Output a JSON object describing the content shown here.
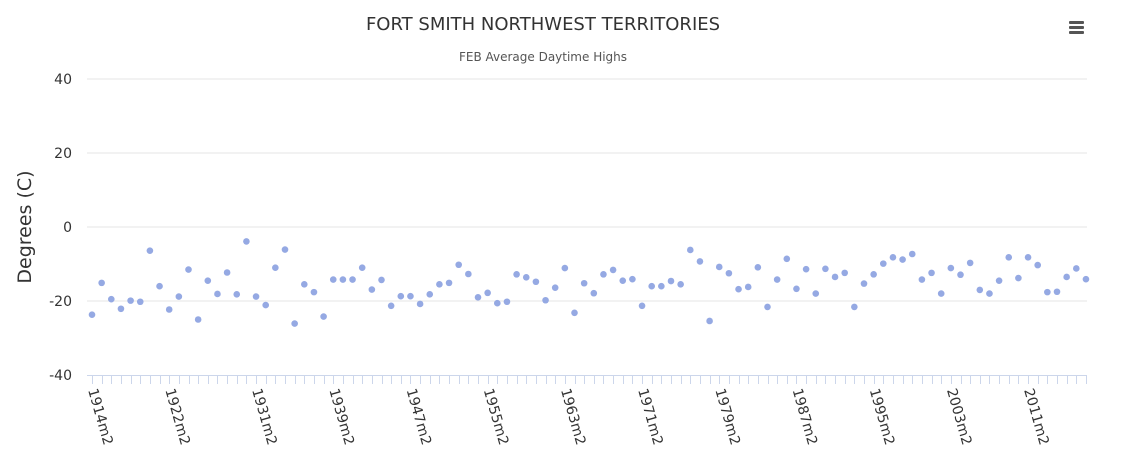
{
  "chart_data": {
    "type": "scatter",
    "title": "FORT SMITH NORTHWEST TERRITORIES",
    "subtitle": "FEB Average Daytime Highs",
    "ylabel": "Degrees (C)",
    "ylim": [
      -40,
      40
    ],
    "yticks": [
      40,
      20,
      0,
      -20,
      -40
    ],
    "grid": true,
    "x_tick_labels": [
      "1914m2",
      "1922m2",
      "1931m2",
      "1939m2",
      "1947m2",
      "1955m2",
      "1963m2",
      "1971m2",
      "1979m2",
      "1987m2",
      "1995m2",
      "2003m2",
      "2011m2"
    ],
    "series": [
      {
        "color": "#95a9e3",
        "values": [
          -23.7,
          -15.1,
          -19.5,
          -22.1,
          -19.9,
          -20.2,
          -6.4,
          -16.0,
          -22.3,
          -18.8,
          -11.5,
          -25.0,
          -14.5,
          -18.1,
          -12.3,
          -18.2,
          -3.9,
          -18.8,
          -21.1,
          -11.0,
          -6.1,
          -26.1,
          -15.5,
          -17.6,
          -24.2,
          -14.2,
          -14.2,
          -14.2,
          -11.0,
          -16.9,
          -14.3,
          -21.3,
          -18.7,
          -18.7,
          -20.8,
          -18.2,
          -15.5,
          -15.1,
          -10.2,
          -12.7,
          -19.0,
          -17.8,
          -20.6,
          -20.2,
          -12.8,
          -13.6,
          -14.8,
          -19.8,
          -16.4,
          -11.1,
          -23.2,
          -15.2,
          -17.9,
          -12.8,
          -11.6,
          -14.5,
          -14.1,
          -21.3,
          -16.0,
          -16.0,
          -14.6,
          -15.5,
          -6.2,
          -9.3,
          -25.4,
          -10.8,
          -12.5,
          -16.8,
          -16.2,
          -10.9,
          -21.6,
          -14.2,
          -8.6,
          -16.7,
          -11.4,
          -18.0,
          -11.3,
          -13.5,
          -12.4,
          -21.6,
          -15.3,
          -12.8,
          -9.9,
          -8.2,
          -8.8,
          -7.3,
          -14.2,
          -12.4,
          -18.0,
          -11.1,
          -12.9,
          -9.7,
          -17.0,
          -18.0,
          -14.5,
          -8.2,
          -13.8,
          -8.2,
          -10.3,
          -17.6,
          -17.5,
          -13.5,
          -11.2,
          -14.1
        ]
      }
    ]
  }
}
